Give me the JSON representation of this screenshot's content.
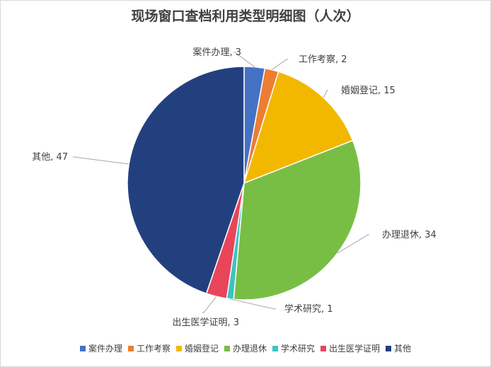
{
  "chart_data": {
    "type": "pie",
    "title": "现场窗口查档利用类型明细图（人次）",
    "categories": [
      "案件办理",
      "工作考察",
      "婚姻登记",
      "办理退休",
      "学术研究",
      "出生医学证明",
      "其他"
    ],
    "values": [
      3,
      2,
      15,
      34,
      1,
      3,
      47
    ],
    "colors": [
      "#4472C4",
      "#ED7D31",
      "#F2B800",
      "#78BE45",
      "#3CC4C0",
      "#E8455A",
      "#23407E"
    ],
    "data_labels": [
      "案件办理, 3",
      "工作考察, 2",
      "婚姻登记, 15",
      "办理退休, 34",
      "学术研究, 1",
      "出生医学证明, 3",
      "其他, 47"
    ],
    "legend_position": "bottom"
  }
}
